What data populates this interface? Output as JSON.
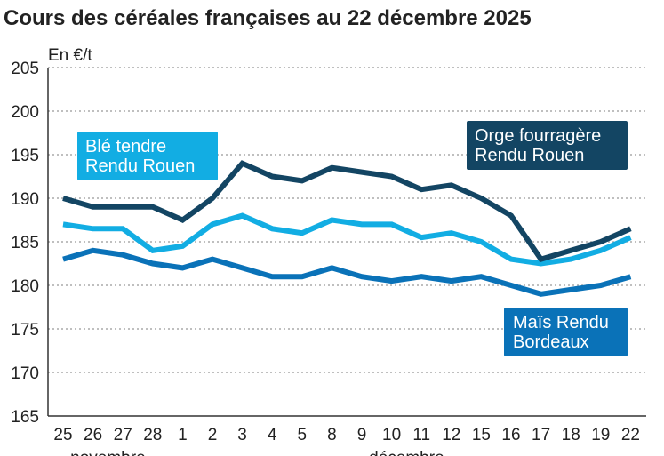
{
  "chart_data": {
    "type": "line",
    "title": "Cours des céréales françaises au 22 décembre 2025",
    "ylabel": "En €/t",
    "ylim": [
      165,
      205
    ],
    "yticks": [
      165,
      170,
      175,
      180,
      185,
      190,
      195,
      200,
      205
    ],
    "grid": true,
    "categories": [
      "25",
      "26",
      "27",
      "28",
      "1",
      "2",
      "3",
      "4",
      "5",
      "8",
      "9",
      "10",
      "11",
      "12",
      "15",
      "16",
      "17",
      "18",
      "19",
      "22"
    ],
    "month_labels": [
      {
        "label": "novembre",
        "from": 0,
        "to": 3
      },
      {
        "label": "décembre",
        "from": 4,
        "to": 19
      }
    ],
    "series": [
      {
        "name": "Orge fourragère Rendu Rouen",
        "label_lines": [
          "Orge fourragère",
          "Rendu Rouen"
        ],
        "color": "#134563",
        "values": [
          190,
          189,
          189,
          189,
          187.5,
          190,
          194,
          192.5,
          192,
          193.5,
          193,
          192.5,
          191,
          191.5,
          190,
          188,
          183,
          184,
          185,
          186.5
        ]
      },
      {
        "name": "Blé tendre Rendu Rouen",
        "label_lines": [
          "Blé tendre",
          "Rendu Rouen"
        ],
        "color": "#12ade3",
        "values": [
          187,
          186.5,
          186.5,
          184,
          184.5,
          187,
          188,
          186.5,
          186,
          187.5,
          187,
          187,
          185.5,
          186,
          185,
          183,
          182.5,
          183,
          184,
          185.5
        ]
      },
      {
        "name": "Maïs Rendu Bordeaux",
        "label_lines": [
          "Maïs Rendu",
          "Bordeaux"
        ],
        "color": "#0a72b8",
        "values": [
          183,
          184,
          183.5,
          182.5,
          182,
          183,
          182,
          181,
          181,
          182,
          181,
          180.5,
          181,
          180.5,
          181,
          180,
          179,
          179.5,
          180,
          181
        ]
      }
    ]
  }
}
